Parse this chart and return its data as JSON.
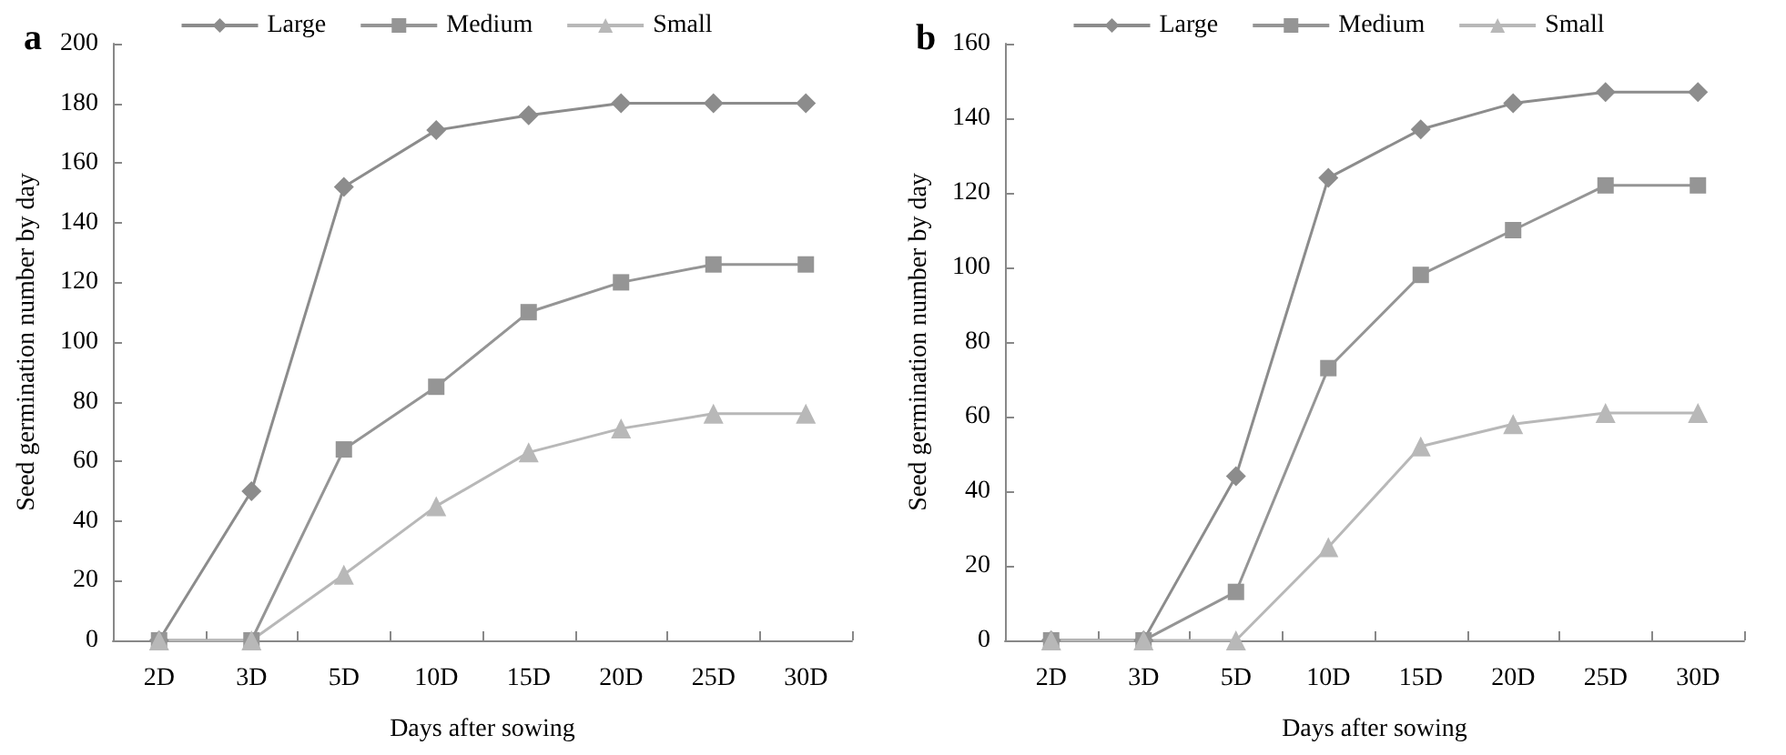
{
  "chart_data": [
    {
      "type": "line",
      "title": "a",
      "xlabel": "Days after sowing",
      "ylabel": "Seed germination number by day",
      "categories": [
        "2D",
        "3D",
        "5D",
        "10D",
        "15D",
        "20D",
        "25D",
        "30D"
      ],
      "ylim": [
        0,
        200
      ],
      "yticks": [
        0,
        20,
        40,
        60,
        80,
        100,
        120,
        140,
        160,
        180,
        200
      ],
      "grid": false,
      "legend": "top",
      "series": [
        {
          "name": "Large",
          "color": "#8c8c8c",
          "marker": "diamond",
          "values": [
            0,
            50,
            152,
            171,
            176,
            180,
            180,
            180
          ]
        },
        {
          "name": "Medium",
          "color": "#959595",
          "marker": "square",
          "values": [
            0,
            0,
            64,
            85,
            110,
            120,
            126,
            126
          ]
        },
        {
          "name": "Small",
          "color": "#b8b8b8",
          "marker": "triangle",
          "values": [
            0,
            0,
            22,
            45,
            63,
            71,
            76,
            76
          ]
        }
      ]
    },
    {
      "type": "line",
      "title": "b",
      "xlabel": "Days after sowing",
      "ylabel": "Seed germination number by day",
      "categories": [
        "2D",
        "3D",
        "5D",
        "10D",
        "15D",
        "20D",
        "25D",
        "30D"
      ],
      "ylim": [
        0,
        160
      ],
      "yticks": [
        0,
        20,
        40,
        60,
        80,
        100,
        120,
        140,
        160
      ],
      "grid": false,
      "legend": "top",
      "series": [
        {
          "name": "Large",
          "color": "#8c8c8c",
          "marker": "diamond",
          "values": [
            0,
            0,
            44,
            124,
            137,
            144,
            147,
            147
          ]
        },
        {
          "name": "Medium",
          "color": "#959595",
          "marker": "square",
          "values": [
            0,
            0,
            13,
            73,
            98,
            110,
            122,
            122
          ]
        },
        {
          "name": "Small",
          "color": "#b8b8b8",
          "marker": "triangle",
          "values": [
            0,
            0,
            0,
            25,
            52,
            58,
            61,
            61
          ]
        }
      ]
    }
  ]
}
